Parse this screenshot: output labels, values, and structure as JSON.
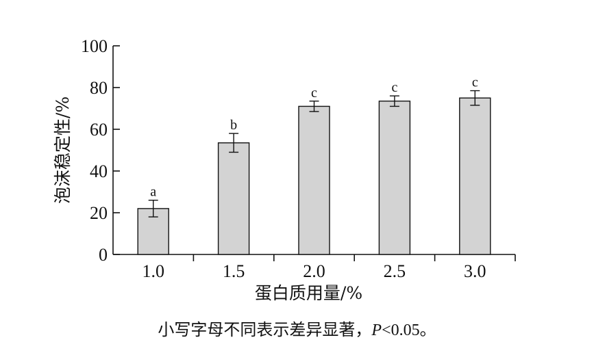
{
  "chart_data": {
    "type": "bar",
    "categories": [
      "1.0",
      "1.5",
      "2.0",
      "2.5",
      "3.0"
    ],
    "values": [
      22,
      53.5,
      71,
      73.5,
      75
    ],
    "errors": [
      4,
      4.5,
      2.5,
      2.5,
      3.5
    ],
    "significance": [
      "a",
      "b",
      "c",
      "c",
      "c"
    ],
    "xlabel": "蛋白质用量/%",
    "ylabel": "泡沫稳定性/%",
    "ylim": [
      0,
      100
    ],
    "yticks": [
      "0",
      "20",
      "40",
      "60",
      "80",
      "100"
    ],
    "grid": false,
    "bar_color": "#d3d3d3",
    "edge_color": "#111111"
  },
  "footnote": {
    "text": "小写字母不同表示差异显著，",
    "p_symbol": "P",
    "comparator": "<0.05。"
  }
}
